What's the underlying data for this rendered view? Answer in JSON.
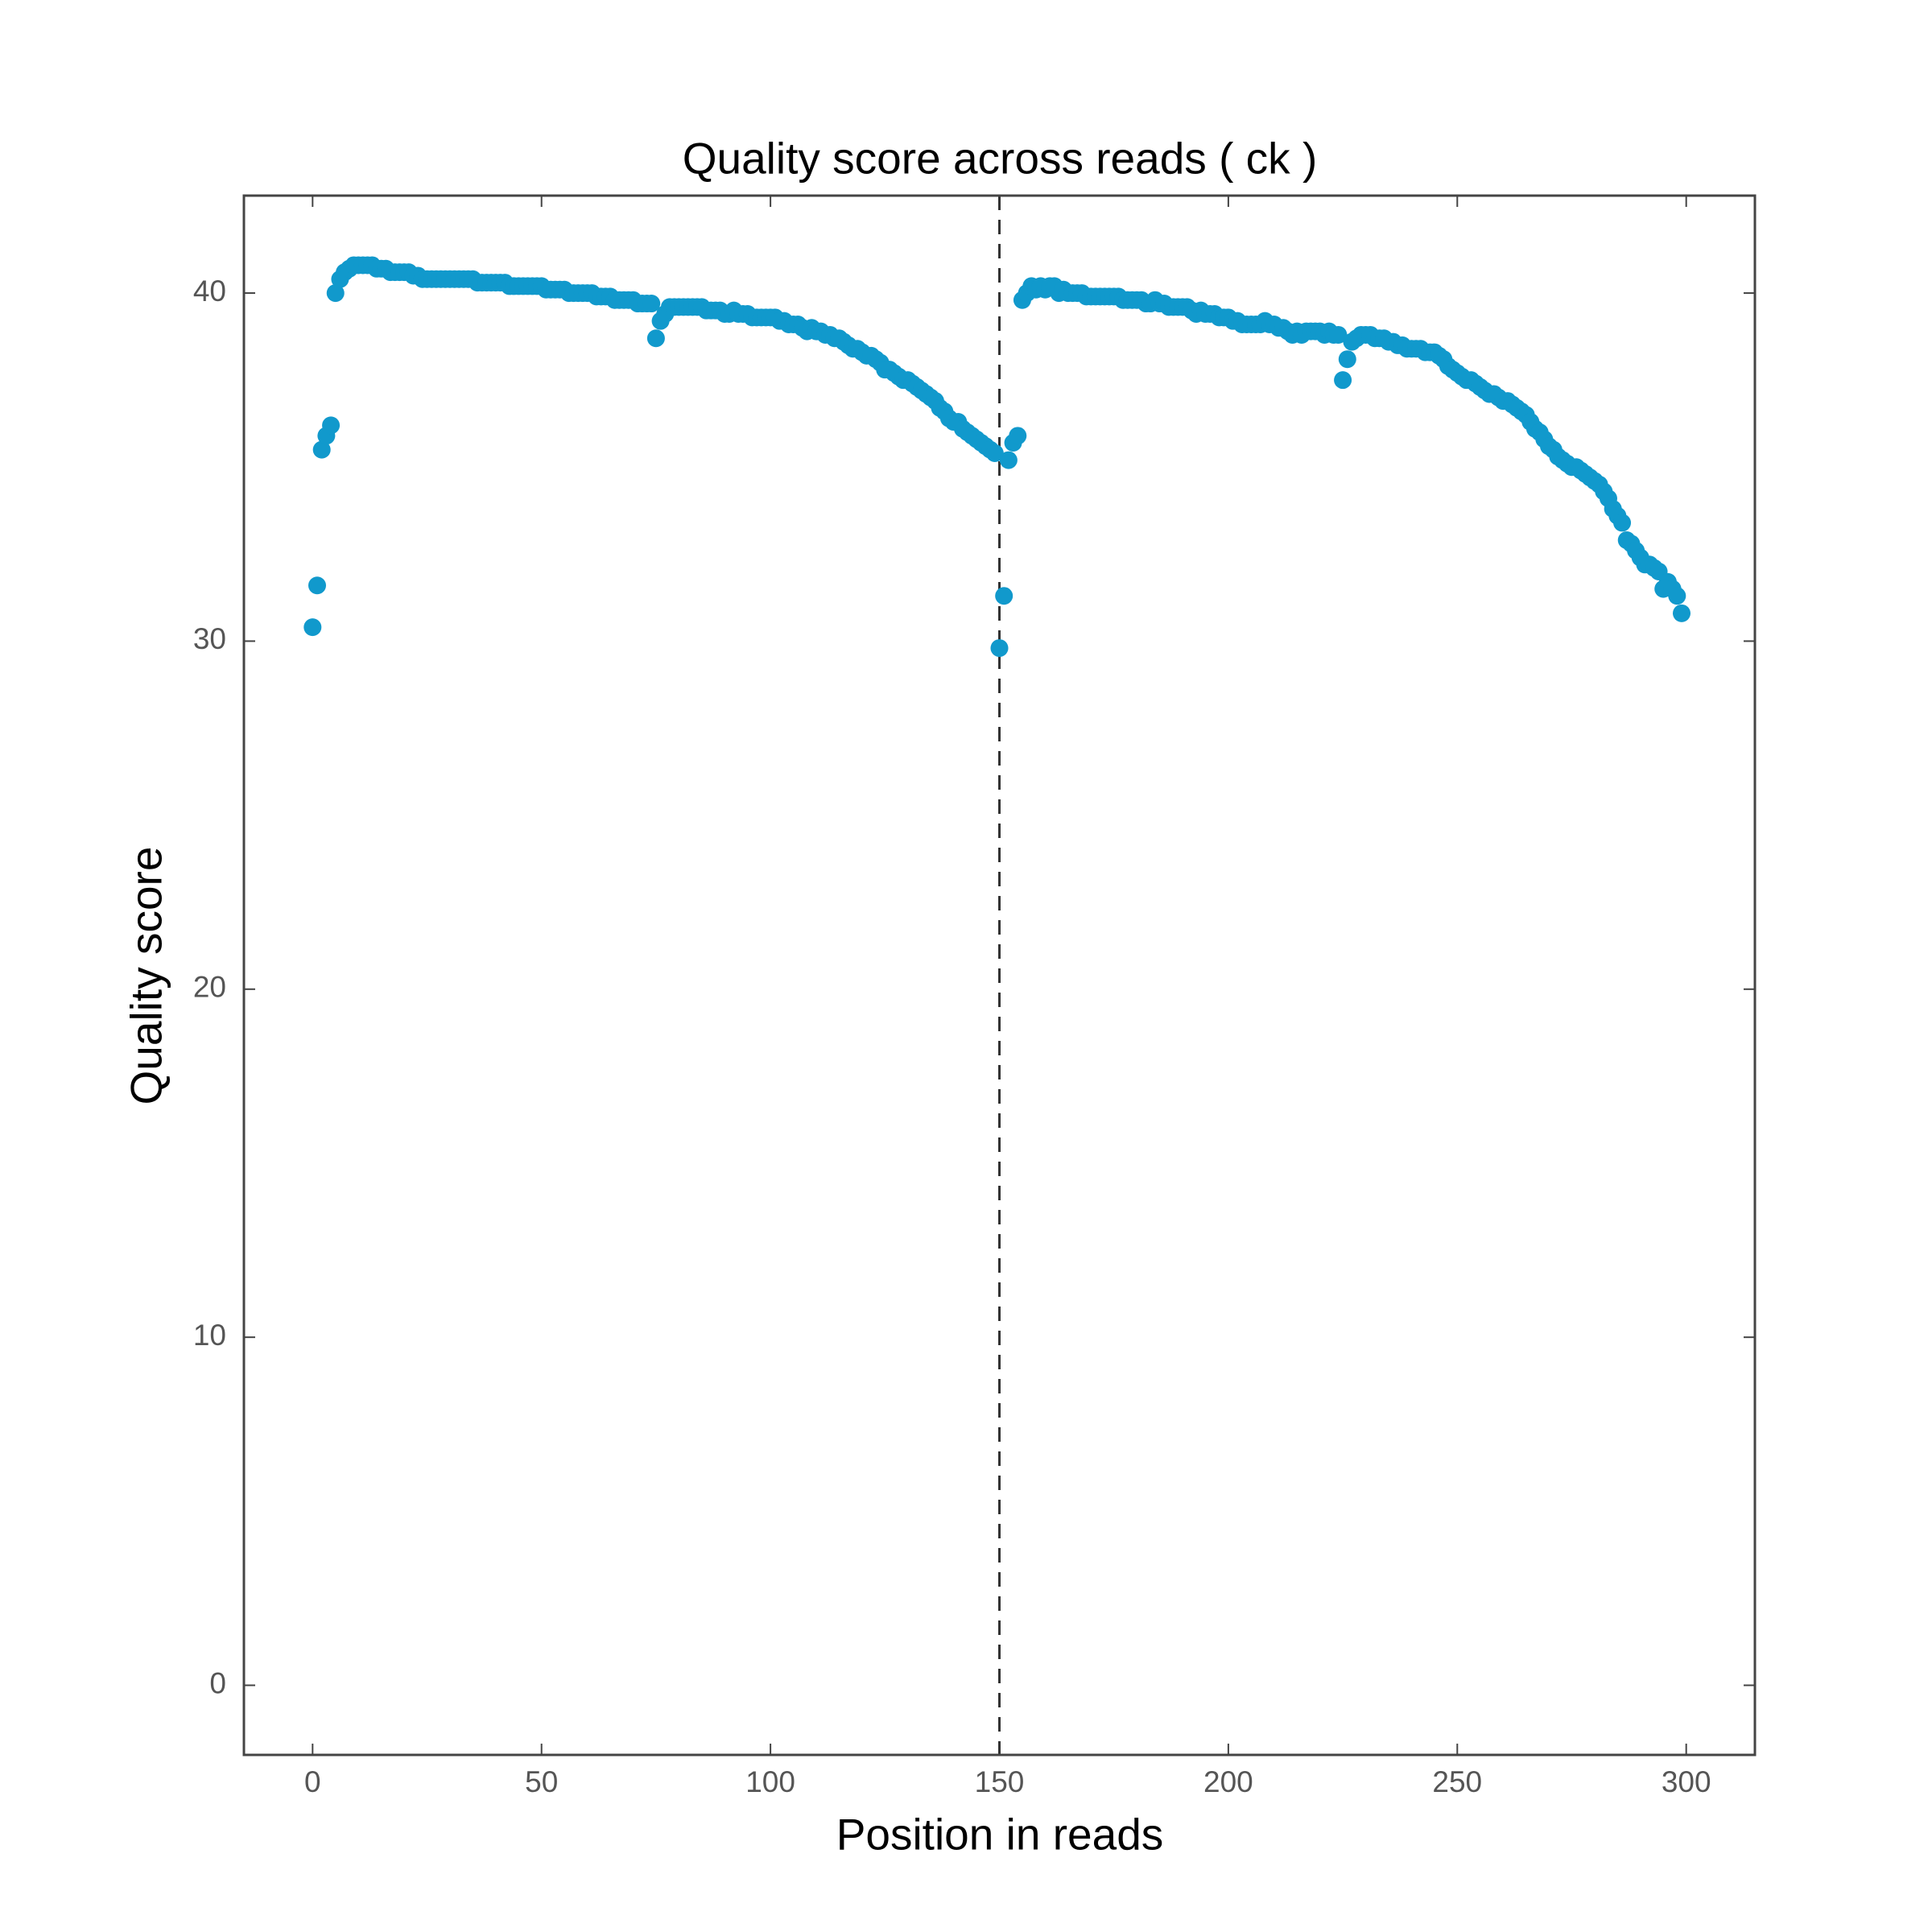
{
  "chart_data": {
    "type": "scatter",
    "title": "Quality score across reads ( ck )",
    "x_label": "Position in reads",
    "y_label": "Quality score",
    "color": "#1199cc",
    "vline_x": 150,
    "xlim": [
      -15,
      315
    ],
    "ylim": [
      -2,
      42.8
    ],
    "xticks": [
      0,
      50,
      100,
      150,
      200,
      250,
      300
    ],
    "yticks": [
      0,
      10,
      20,
      30,
      40
    ],
    "grid": false,
    "x": [
      0,
      1,
      2,
      3,
      4,
      5,
      6,
      7,
      8,
      9,
      10,
      11,
      12,
      13,
      14,
      15,
      16,
      17,
      18,
      19,
      20,
      21,
      22,
      23,
      24,
      25,
      26,
      27,
      28,
      29,
      30,
      31,
      32,
      33,
      34,
      35,
      36,
      37,
      38,
      39,
      40,
      41,
      42,
      43,
      44,
      45,
      46,
      47,
      48,
      49,
      50,
      51,
      52,
      53,
      54,
      55,
      56,
      57,
      58,
      59,
      60,
      61,
      62,
      63,
      64,
      65,
      66,
      67,
      68,
      69,
      70,
      71,
      72,
      73,
      74,
      75,
      76,
      77,
      78,
      79,
      80,
      81,
      82,
      83,
      84,
      85,
      86,
      87,
      88,
      89,
      90,
      91,
      92,
      93,
      94,
      95,
      96,
      97,
      98,
      99,
      100,
      101,
      102,
      103,
      104,
      105,
      106,
      107,
      108,
      109,
      110,
      111,
      112,
      113,
      114,
      115,
      116,
      117,
      118,
      119,
      120,
      121,
      122,
      123,
      124,
      125,
      126,
      127,
      128,
      129,
      130,
      131,
      132,
      133,
      134,
      135,
      136,
      137,
      138,
      139,
      140,
      141,
      142,
      143,
      144,
      145,
      146,
      147,
      148,
      149,
      150,
      151,
      152,
      153,
      154,
      155,
      156,
      157,
      158,
      159,
      160,
      161,
      162,
      163,
      164,
      165,
      166,
      167,
      168,
      169,
      170,
      171,
      172,
      173,
      174,
      175,
      176,
      177,
      178,
      179,
      180,
      181,
      182,
      183,
      184,
      185,
      186,
      187,
      188,
      189,
      190,
      191,
      192,
      193,
      194,
      195,
      196,
      197,
      198,
      199,
      200,
      201,
      202,
      203,
      204,
      205,
      206,
      207,
      208,
      209,
      210,
      211,
      212,
      213,
      214,
      215,
      216,
      217,
      218,
      219,
      220,
      221,
      222,
      223,
      224,
      225,
      226,
      227,
      228,
      229,
      230,
      231,
      232,
      233,
      234,
      235,
      236,
      237,
      238,
      239,
      240,
      241,
      242,
      243,
      244,
      245,
      246,
      247,
      248,
      249,
      250,
      251,
      252,
      253,
      254,
      255,
      256,
      257,
      258,
      259,
      260,
      261,
      262,
      263,
      264,
      265,
      266,
      267,
      268,
      269,
      270,
      271,
      272,
      273,
      274,
      275,
      276,
      277,
      278,
      279,
      280,
      281,
      282,
      283,
      284,
      285,
      286,
      287,
      288,
      289,
      290,
      291,
      292,
      293,
      294,
      295,
      296,
      297,
      298,
      299
    ],
    "values": [
      30.4,
      31.6,
      35.5,
      35.9,
      36.2,
      40.0,
      40.4,
      40.6,
      40.7,
      40.8,
      40.8,
      40.8,
      40.8,
      40.8,
      40.7,
      40.7,
      40.7,
      40.6,
      40.6,
      40.6,
      40.6,
      40.6,
      40.5,
      40.5,
      40.4,
      40.4,
      40.4,
      40.4,
      40.4,
      40.4,
      40.4,
      40.4,
      40.4,
      40.4,
      40.4,
      40.4,
      40.3,
      40.3,
      40.3,
      40.3,
      40.3,
      40.3,
      40.3,
      40.2,
      40.2,
      40.2,
      40.2,
      40.2,
      40.2,
      40.2,
      40.2,
      40.1,
      40.1,
      40.1,
      40.1,
      40.1,
      40.0,
      40.0,
      40.0,
      40.0,
      40.0,
      40.0,
      39.9,
      39.9,
      39.9,
      39.9,
      39.8,
      39.8,
      39.8,
      39.8,
      39.8,
      39.7,
      39.7,
      39.7,
      39.7,
      38.7,
      39.2,
      39.4,
      39.6,
      39.6,
      39.6,
      39.6,
      39.6,
      39.6,
      39.6,
      39.6,
      39.5,
      39.5,
      39.5,
      39.5,
      39.4,
      39.4,
      39.5,
      39.4,
      39.4,
      39.4,
      39.3,
      39.3,
      39.3,
      39.3,
      39.3,
      39.3,
      39.2,
      39.2,
      39.1,
      39.1,
      39.1,
      39.0,
      38.9,
      39.0,
      38.9,
      38.9,
      38.8,
      38.8,
      38.7,
      38.7,
      38.6,
      38.5,
      38.4,
      38.4,
      38.3,
      38.2,
      38.2,
      38.1,
      38.0,
      37.8,
      37.8,
      37.7,
      37.6,
      37.5,
      37.5,
      37.4,
      37.3,
      37.2,
      37.1,
      37.0,
      36.9,
      36.7,
      36.6,
      36.4,
      36.3,
      36.3,
      36.1,
      36.0,
      35.9,
      35.8,
      35.7,
      35.6,
      35.5,
      35.4,
      29.8,
      31.3,
      35.2,
      35.7,
      35.9,
      39.8,
      40.0,
      40.2,
      40.1,
      40.2,
      40.1,
      40.2,
      40.2,
      40.0,
      40.1,
      40.0,
      40.0,
      40.0,
      40.0,
      39.9,
      39.9,
      39.9,
      39.9,
      39.9,
      39.9,
      39.9,
      39.9,
      39.8,
      39.8,
      39.8,
      39.8,
      39.8,
      39.7,
      39.7,
      39.8,
      39.7,
      39.7,
      39.6,
      39.6,
      39.6,
      39.6,
      39.6,
      39.5,
      39.4,
      39.5,
      39.4,
      39.4,
      39.4,
      39.3,
      39.3,
      39.3,
      39.2,
      39.2,
      39.1,
      39.1,
      39.1,
      39.1,
      39.1,
      39.2,
      39.1,
      39.1,
      39.0,
      39.0,
      38.9,
      38.8,
      38.9,
      38.8,
      38.9,
      38.9,
      38.9,
      38.9,
      38.8,
      38.9,
      38.8,
      38.8,
      37.5,
      38.1,
      38.6,
      38.7,
      38.8,
      38.8,
      38.8,
      38.7,
      38.7,
      38.7,
      38.6,
      38.6,
      38.5,
      38.5,
      38.4,
      38.4,
      38.4,
      38.4,
      38.3,
      38.3,
      38.3,
      38.2,
      38.1,
      37.9,
      37.8,
      37.7,
      37.6,
      37.5,
      37.5,
      37.4,
      37.3,
      37.2,
      37.1,
      37.1,
      37.0,
      36.9,
      36.9,
      36.8,
      36.7,
      36.6,
      36.5,
      36.3,
      36.1,
      36.0,
      35.8,
      35.6,
      35.5,
      35.3,
      35.2,
      35.1,
      35.0,
      35.0,
      34.9,
      34.8,
      34.7,
      34.6,
      34.5,
      34.3,
      34.1,
      33.8,
      33.6,
      33.4,
      32.9,
      32.8,
      32.6,
      32.4,
      32.2,
      32.2,
      32.1,
      32.0,
      31.5,
      31.7,
      31.5,
      31.3,
      30.8
    ]
  }
}
